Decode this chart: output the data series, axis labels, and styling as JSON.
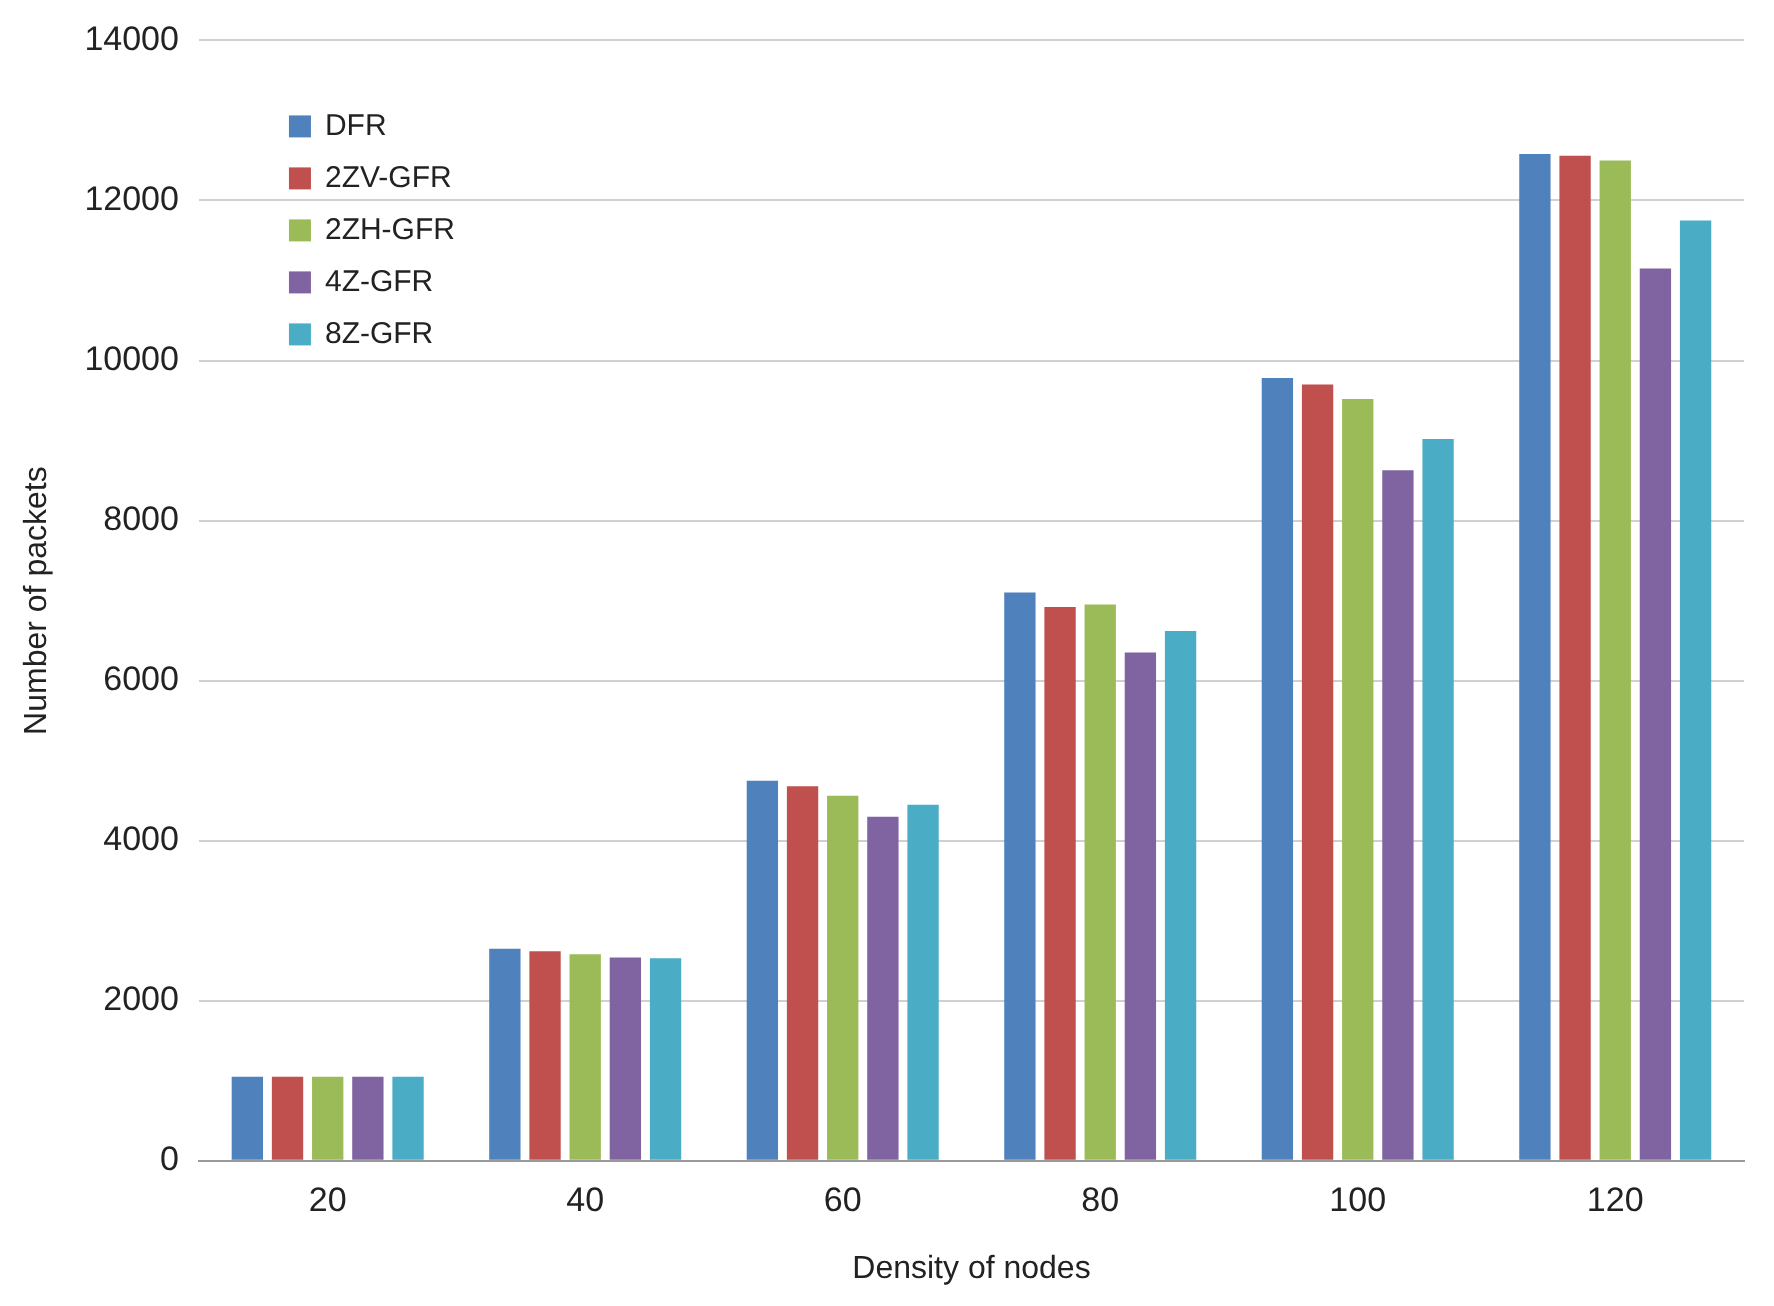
{
  "chart_data": {
    "type": "bar",
    "xlabel": "Density of nodes",
    "ylabel": "Number of packets",
    "categories": [
      "20",
      "40",
      "60",
      "80",
      "100",
      "120"
    ],
    "series": [
      {
        "name": "DFR",
        "color": "#4f81bd",
        "values": [
          1050,
          2650,
          4750,
          7100,
          9780,
          12580
        ]
      },
      {
        "name": "2ZV-GFR",
        "color": "#c0504d",
        "values": [
          1050,
          2620,
          4680,
          6920,
          9700,
          12560
        ]
      },
      {
        "name": "2ZH-GFR",
        "color": "#9bbb59",
        "values": [
          1050,
          2580,
          4560,
          6950,
          9520,
          12500
        ]
      },
      {
        "name": "4Z-GFR",
        "color": "#8064a2",
        "values": [
          1050,
          2540,
          4300,
          6350,
          8630,
          11150
        ]
      },
      {
        "name": "8Z-GFR",
        "color": "#4bacc6",
        "values": [
          1050,
          2530,
          4450,
          6620,
          9020,
          11750
        ]
      }
    ],
    "ylim": [
      0,
      14000
    ],
    "yticks": [
      0,
      2000,
      4000,
      6000,
      8000,
      10000,
      12000,
      14000
    ],
    "grid": "y",
    "legend": "top left"
  }
}
